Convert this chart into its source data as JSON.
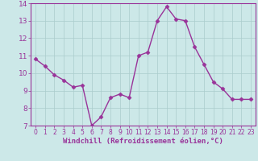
{
  "x": [
    0,
    1,
    2,
    3,
    4,
    5,
    6,
    7,
    8,
    9,
    10,
    11,
    12,
    13,
    14,
    15,
    16,
    17,
    18,
    19,
    20,
    21,
    22,
    23
  ],
  "y": [
    10.8,
    10.4,
    9.9,
    9.6,
    9.2,
    9.3,
    7.0,
    7.5,
    8.6,
    8.8,
    8.6,
    11.0,
    11.2,
    13.0,
    13.8,
    13.1,
    13.0,
    11.5,
    10.5,
    9.5,
    9.1,
    8.5,
    8.5,
    8.5
  ],
  "line_color": "#993399",
  "marker": "D",
  "marker_size": 2.5,
  "linewidth": 1.0,
  "xlabel": "Windchill (Refroidissement éolien,°C)",
  "xlabel_fontsize": 6.5,
  "ylim": [
    7,
    14
  ],
  "xlim": [
    -0.5,
    23.5
  ],
  "yticks": [
    7,
    8,
    9,
    10,
    11,
    12,
    13,
    14
  ],
  "xticks": [
    0,
    1,
    2,
    3,
    4,
    5,
    6,
    7,
    8,
    9,
    10,
    11,
    12,
    13,
    14,
    15,
    16,
    17,
    18,
    19,
    20,
    21,
    22,
    23
  ],
  "grid_color": "#aacccc",
  "bg_color": "#cce8e8",
  "tick_color": "#993399",
  "spine_color": "#993399",
  "x_tick_fontsize": 5.5,
  "y_tick_fontsize": 6.5
}
